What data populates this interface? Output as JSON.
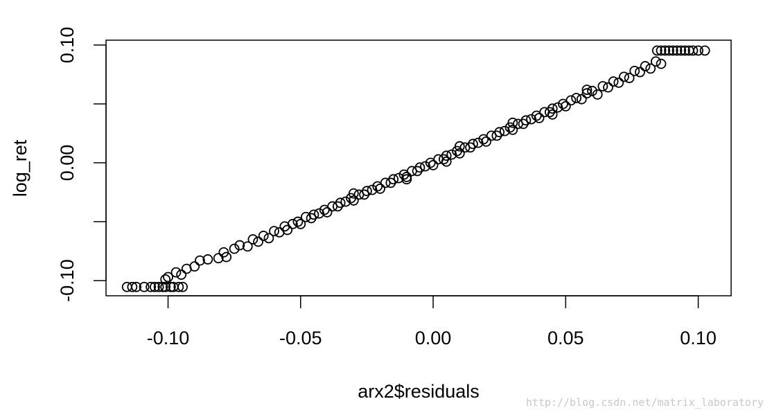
{
  "chart_data": {
    "type": "scatter",
    "title": "",
    "xlabel": "arx2$residuals",
    "ylabel": "log_ret",
    "xlim": [
      -0.1234,
      0.1124
    ],
    "ylim": [
      -0.1129,
      0.1041
    ],
    "x_ticks": [
      -0.1,
      -0.05,
      0.0,
      0.05,
      0.1
    ],
    "x_tick_labels": [
      "-0.10",
      "-0.05",
      "0.00",
      "0.05",
      "0.10"
    ],
    "y_ticks": [
      -0.1,
      -0.05,
      0.0,
      0.05,
      0.1
    ],
    "y_tick_labels": [
      "-0.10",
      "",
      "0.00",
      "",
      "0.10"
    ],
    "grid": false,
    "marker": "open-circle",
    "marker_color": "#000000",
    "points": [
      [
        -0.1155,
        -0.1054
      ],
      [
        -0.1135,
        -0.1054
      ],
      [
        -0.112,
        -0.1054
      ],
      [
        -0.109,
        -0.1054
      ],
      [
        -0.1065,
        -0.1054
      ],
      [
        -0.105,
        -0.1054
      ],
      [
        -0.1035,
        -0.1054
      ],
      [
        -0.102,
        -0.1054
      ],
      [
        -0.101,
        -0.1054
      ],
      [
        -0.099,
        -0.1054
      ],
      [
        -0.098,
        -0.1054
      ],
      [
        -0.096,
        -0.1054
      ],
      [
        -0.0945,
        -0.1054
      ],
      [
        -0.1,
        -0.097
      ],
      [
        -0.101,
        -0.099
      ],
      [
        -0.097,
        -0.093
      ],
      [
        -0.095,
        -0.095
      ],
      [
        -0.093,
        -0.09
      ],
      [
        -0.09,
        -0.088
      ],
      [
        -0.088,
        -0.083
      ],
      [
        -0.085,
        -0.082
      ],
      [
        -0.081,
        -0.081
      ],
      [
        -0.079,
        -0.076
      ],
      [
        -0.078,
        -0.08
      ],
      [
        -0.075,
        -0.073
      ],
      [
        -0.073,
        -0.07
      ],
      [
        -0.07,
        -0.071
      ],
      [
        -0.068,
        -0.065
      ],
      [
        -0.066,
        -0.067
      ],
      [
        -0.064,
        -0.062
      ],
      [
        -0.062,
        -0.064
      ],
      [
        -0.06,
        -0.058
      ],
      [
        -0.058,
        -0.059
      ],
      [
        -0.056,
        -0.054
      ],
      [
        -0.055,
        -0.057
      ],
      [
        -0.053,
        -0.052
      ],
      [
        -0.051,
        -0.05
      ],
      [
        -0.05,
        -0.052
      ],
      [
        -0.048,
        -0.046
      ],
      [
        -0.046,
        -0.047
      ],
      [
        -0.045,
        -0.044
      ],
      [
        -0.043,
        -0.043
      ],
      [
        -0.041,
        -0.04
      ],
      [
        -0.04,
        -0.042
      ],
      [
        -0.038,
        -0.037
      ],
      [
        -0.036,
        -0.037
      ],
      [
        -0.035,
        -0.034
      ],
      [
        -0.033,
        -0.033
      ],
      [
        -0.031,
        -0.03
      ],
      [
        -0.03,
        -0.032
      ],
      [
        -0.03,
        -0.026
      ],
      [
        -0.028,
        -0.027
      ],
      [
        -0.026,
        -0.027
      ],
      [
        -0.025,
        -0.024
      ],
      [
        -0.023,
        -0.023
      ],
      [
        -0.021,
        -0.02
      ],
      [
        -0.02,
        -0.022
      ],
      [
        -0.018,
        -0.017
      ],
      [
        -0.016,
        -0.017
      ],
      [
        -0.015,
        -0.014
      ],
      [
        -0.013,
        -0.013
      ],
      [
        -0.011,
        -0.01
      ],
      [
        -0.01,
        -0.012
      ],
      [
        -0.01,
        -0.014
      ],
      [
        -0.008,
        -0.007
      ],
      [
        -0.006,
        -0.007
      ],
      [
        -0.005,
        -0.004
      ],
      [
        -0.003,
        -0.003
      ],
      [
        -0.001,
        0
      ],
      [
        0,
        -0.002
      ],
      [
        0.002,
        0.003
      ],
      [
        0.004,
        0.003
      ],
      [
        0.005,
        0.006
      ],
      [
        0.005,
        0.001
      ],
      [
        0.007,
        0.007
      ],
      [
        0.009,
        0.01
      ],
      [
        0.01,
        0.008
      ],
      [
        0.01,
        0.014
      ],
      [
        0.012,
        0.013
      ],
      [
        0.014,
        0.013
      ],
      [
        0.015,
        0.016
      ],
      [
        0.017,
        0.017
      ],
      [
        0.019,
        0.02
      ],
      [
        0.02,
        0.018
      ],
      [
        0.022,
        0.023
      ],
      [
        0.024,
        0.023
      ],
      [
        0.025,
        0.026
      ],
      [
        0.027,
        0.027
      ],
      [
        0.029,
        0.03
      ],
      [
        0.03,
        0.028
      ],
      [
        0.03,
        0.034
      ],
      [
        0.032,
        0.033
      ],
      [
        0.034,
        0.033
      ],
      [
        0.035,
        0.036
      ],
      [
        0.037,
        0.037
      ],
      [
        0.039,
        0.04
      ],
      [
        0.04,
        0.038
      ],
      [
        0.042,
        0.043
      ],
      [
        0.044,
        0.043
      ],
      [
        0.045,
        0.046
      ],
      [
        0.045,
        0.041
      ],
      [
        0.047,
        0.047
      ],
      [
        0.049,
        0.05
      ],
      [
        0.05,
        0.048
      ],
      [
        0.052,
        0.053
      ],
      [
        0.054,
        0.055
      ],
      [
        0.056,
        0.054
      ],
      [
        0.058,
        0.059
      ],
      [
        0.058,
        0.062
      ],
      [
        0.06,
        0.061
      ],
      [
        0.062,
        0.058
      ],
      [
        0.064,
        0.065
      ],
      [
        0.066,
        0.064
      ],
      [
        0.068,
        0.069
      ],
      [
        0.07,
        0.068
      ],
      [
        0.072,
        0.073
      ],
      [
        0.074,
        0.072
      ],
      [
        0.076,
        0.078
      ],
      [
        0.078,
        0.077
      ],
      [
        0.08,
        0.082
      ],
      [
        0.082,
        0.08
      ],
      [
        0.084,
        0.086
      ],
      [
        0.086,
        0.084
      ],
      [
        0.0845,
        0.0953
      ],
      [
        0.086,
        0.0953
      ],
      [
        0.0875,
        0.0953
      ],
      [
        0.089,
        0.0953
      ],
      [
        0.0905,
        0.0953
      ],
      [
        0.092,
        0.0953
      ],
      [
        0.0935,
        0.0953
      ],
      [
        0.095,
        0.0953
      ],
      [
        0.0965,
        0.0953
      ],
      [
        0.098,
        0.0953
      ],
      [
        0.1,
        0.0953
      ],
      [
        0.1025,
        0.0953
      ]
    ]
  },
  "watermark": "http://blog.csdn.net/matrix_laboratory"
}
